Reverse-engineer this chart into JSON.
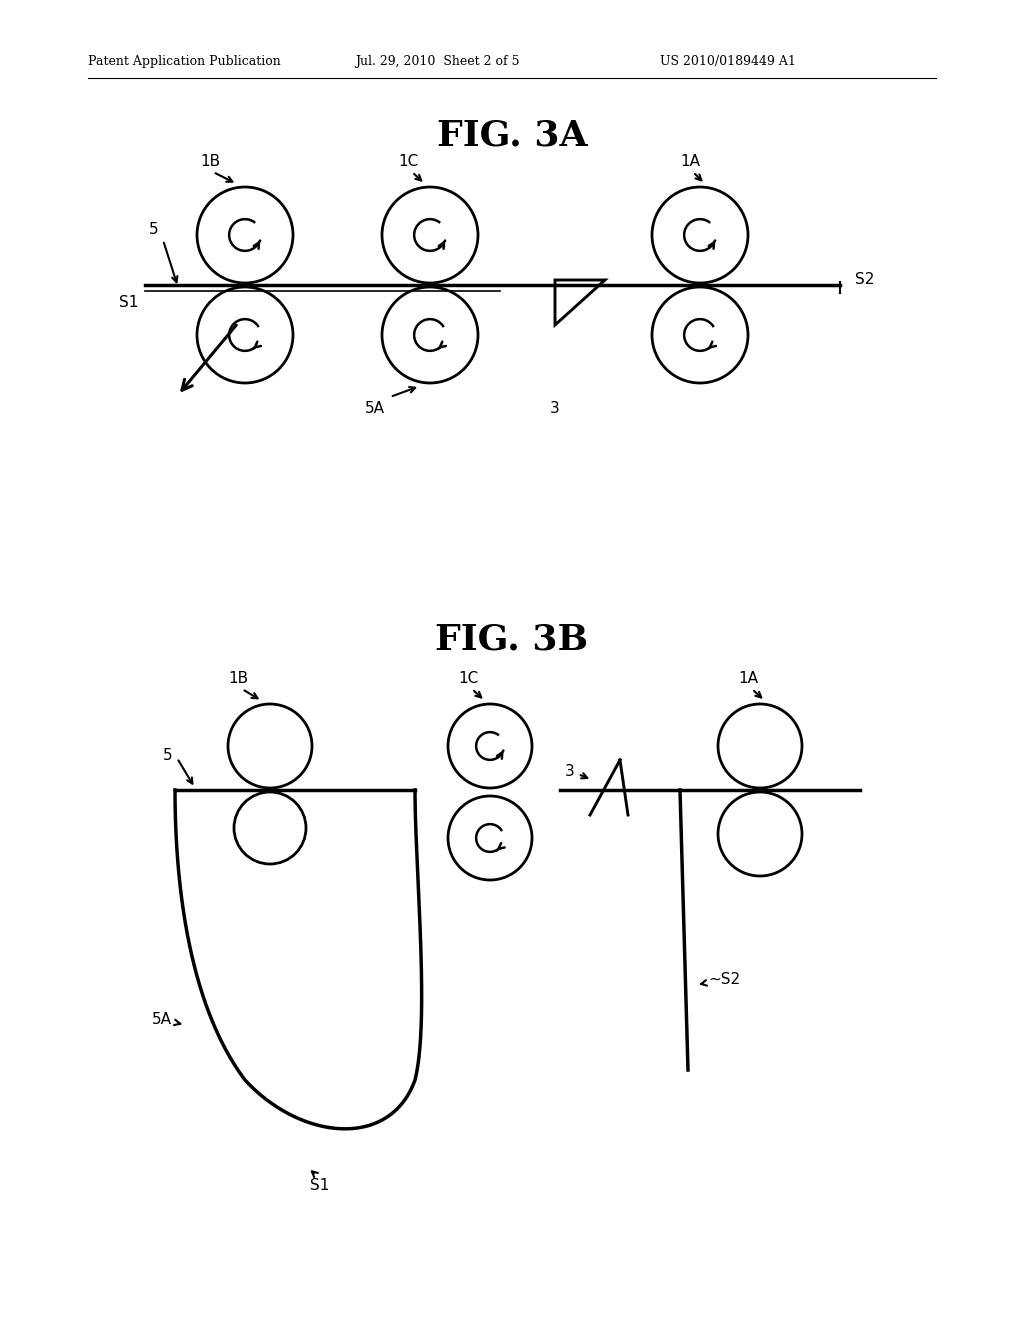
{
  "bg_color": "#ffffff",
  "header_text1": "Patent Application Publication",
  "header_text2": "Jul. 29, 2010  Sheet 2 of 5",
  "header_text3": "US 2010/0189449 A1",
  "fig3a_title": "FIG. 3A",
  "fig3b_title": "FIG. 3B",
  "line_color": "#000000",
  "lw": 1.8,
  "lw_thick": 2.5,
  "circle_lw": 2.0
}
